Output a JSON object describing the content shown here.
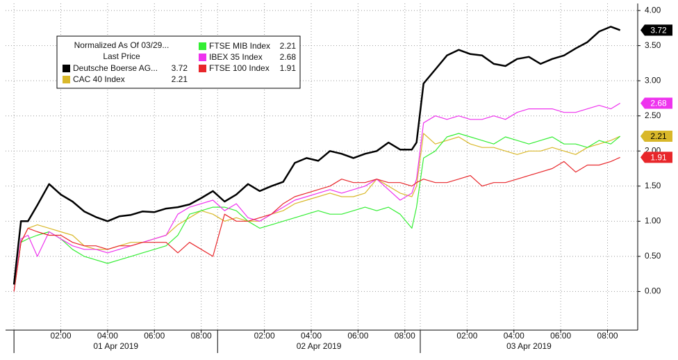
{
  "chart_data": {
    "type": "line",
    "legend_title": [
      "Normalized As Of 03/29...",
      "Last Price"
    ],
    "legend": "top-left",
    "grid": true,
    "x": [
      0,
      0.3,
      0.6,
      1,
      1.5,
      2,
      2.5,
      3,
      3.5,
      4,
      4.5,
      5,
      5.5,
      6,
      6.5,
      7,
      7.5,
      8,
      8.5,
      9,
      9.5,
      10,
      10.5,
      11,
      11.5,
      12,
      12.5,
      13,
      13.5,
      14,
      14.5,
      15,
      15.5,
      16,
      16.5,
      17,
      17.2,
      17.5,
      18,
      18.5,
      19,
      19.5,
      20,
      20.5,
      21,
      21.5,
      22,
      22.5,
      23,
      23.5,
      24,
      24.5,
      25,
      25.5,
      25.9
    ],
    "xlim": [
      -0.36,
      26.65
    ],
    "xticks": [
      {
        "value": 2,
        "label": "02:00"
      },
      {
        "value": 4,
        "label": "04:00"
      },
      {
        "value": 6,
        "label": "06:00"
      },
      {
        "value": 8,
        "label": "08:00"
      },
      {
        "value": 10.7,
        "label": "02:00"
      },
      {
        "value": 12.7,
        "label": "04:00"
      },
      {
        "value": 14.7,
        "label": "06:00"
      },
      {
        "value": 16.7,
        "label": "08:00"
      },
      {
        "value": 19.36,
        "label": "02:00"
      },
      {
        "value": 21.36,
        "label": "04:00"
      },
      {
        "value": 23.36,
        "label": "06:00"
      },
      {
        "value": 25.36,
        "label": "08:00"
      }
    ],
    "day_groups": [
      {
        "label": "01 Apr 2019",
        "start": 0,
        "end": 8.7
      },
      {
        "label": "02 Apr 2019",
        "start": 8.7,
        "end": 17.36
      },
      {
        "label": "03 Apr 2019",
        "start": 17.36,
        "end": 26.65
      }
    ],
    "ylim": [
      -0.55,
      4.1
    ],
    "yticks": [
      {
        "value": 0,
        "label": "0.00"
      },
      {
        "value": 0.5,
        "label": "0.50"
      },
      {
        "value": 1,
        "label": "1.00"
      },
      {
        "value": 1.5,
        "label": "1.50"
      },
      {
        "value": 2,
        "label": "2.00"
      },
      {
        "value": 2.5,
        "label": "2.50"
      },
      {
        "value": 3,
        "label": "3.00"
      },
      {
        "value": 3.5,
        "label": "3.50"
      },
      {
        "value": 4,
        "label": "4.00"
      }
    ],
    "series": [
      {
        "name": "Deutsche Boerse AG...",
        "color": "#000000",
        "values": [
          0.1,
          1.0,
          1.0,
          1.23,
          1.53,
          1.38,
          1.28,
          1.14,
          1.06,
          1.0,
          1.07,
          1.09,
          1.14,
          1.13,
          1.18,
          1.2,
          1.24,
          1.33,
          1.43,
          1.28,
          1.38,
          1.53,
          1.43,
          1.5,
          1.56,
          1.83,
          1.9,
          1.86,
          2.0,
          1.96,
          1.9,
          1.96,
          2.0,
          2.12,
          2.02,
          2.02,
          2.12,
          2.96,
          3.16,
          3.36,
          3.44,
          3.38,
          3.36,
          3.24,
          3.21,
          3.31,
          3.34,
          3.24,
          3.31,
          3.36,
          3.46,
          3.55,
          3.7,
          3.77,
          3.72
        ]
      },
      {
        "name": "CAC 40 Index",
        "color": "#d9b82a",
        "values": [
          0,
          0.7,
          0.9,
          0.95,
          0.9,
          0.85,
          0.8,
          0.65,
          0.6,
          0.6,
          0.65,
          0.7,
          0.7,
          0.75,
          0.8,
          0.95,
          1.05,
          1.15,
          1.1,
          1.0,
          1.05,
          1.0,
          1.0,
          1.1,
          1.15,
          1.25,
          1.3,
          1.35,
          1.4,
          1.35,
          1.35,
          1.4,
          1.6,
          1.5,
          1.4,
          1.35,
          1.5,
          2.25,
          2.1,
          2.15,
          2.2,
          2.1,
          2.05,
          2.05,
          2.0,
          1.95,
          2.0,
          2.0,
          2.05,
          2.0,
          1.95,
          2.05,
          2.1,
          2.15,
          2.21
        ]
      },
      {
        "name": "FTSE MIB Index",
        "color": "#33ee33",
        "values": [
          0,
          0.7,
          0.75,
          0.8,
          0.85,
          0.75,
          0.6,
          0.5,
          0.45,
          0.4,
          0.45,
          0.5,
          0.55,
          0.6,
          0.65,
          0.8,
          1.1,
          1.15,
          1.2,
          1.2,
          1.15,
          1.0,
          0.9,
          0.95,
          1.0,
          1.05,
          1.1,
          1.15,
          1.1,
          1.1,
          1.15,
          1.2,
          1.15,
          1.2,
          1.1,
          0.9,
          1.2,
          1.9,
          2.0,
          2.2,
          2.25,
          2.2,
          2.15,
          2.1,
          2.2,
          2.15,
          2.1,
          2.15,
          2.2,
          2.1,
          2.1,
          2.05,
          2.15,
          2.1,
          2.21
        ]
      },
      {
        "name": "IBEX 35 Index",
        "color": "#ee33ee",
        "values": [
          0,
          0.75,
          0.8,
          0.5,
          0.85,
          0.75,
          0.65,
          0.6,
          0.6,
          0.55,
          0.6,
          0.65,
          0.7,
          0.75,
          0.8,
          1.1,
          1.2,
          1.25,
          1.3,
          1.15,
          1.25,
          1.05,
          1.0,
          1.1,
          1.2,
          1.3,
          1.35,
          1.4,
          1.45,
          1.4,
          1.45,
          1.5,
          1.6,
          1.45,
          1.3,
          1.4,
          1.6,
          2.4,
          2.5,
          2.45,
          2.5,
          2.45,
          2.45,
          2.5,
          2.45,
          2.55,
          2.6,
          2.6,
          2.6,
          2.55,
          2.55,
          2.6,
          2.65,
          2.6,
          2.68
        ]
      },
      {
        "name": "FTSE 100 Index",
        "color": "#e8262a",
        "values": [
          0,
          0.7,
          0.9,
          0.85,
          0.8,
          0.8,
          0.7,
          0.65,
          0.65,
          0.6,
          0.65,
          0.65,
          0.7,
          0.7,
          0.7,
          0.55,
          0.7,
          0.6,
          0.5,
          1.1,
          1.0,
          1.0,
          1.05,
          1.1,
          1.25,
          1.35,
          1.4,
          1.45,
          1.5,
          1.6,
          1.55,
          1.55,
          1.6,
          1.55,
          1.55,
          1.5,
          1.55,
          1.6,
          1.55,
          1.55,
          1.6,
          1.65,
          1.5,
          1.55,
          1.55,
          1.6,
          1.65,
          1.7,
          1.75,
          1.85,
          1.7,
          1.8,
          1.8,
          1.85,
          1.91
        ]
      }
    ]
  }
}
